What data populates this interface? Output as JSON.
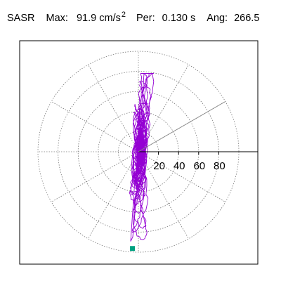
{
  "header": {
    "station": "SASR",
    "max_label": "Max:",
    "max_value": "91.9 cm/s",
    "max_exp": "2",
    "per_label": "Per:",
    "per_value": "0.130 s",
    "ang_label": "Ang:",
    "ang_value": "266.5"
  },
  "chart_data": {
    "type": "scatter",
    "description_free": true,
    "coordinate_system": "polar",
    "radial_ticks": [
      20,
      40,
      60,
      80
    ],
    "radial_range": [
      0,
      100
    ],
    "rings": [
      20,
      40,
      60,
      80,
      100
    ],
    "spoke_angles_deg": [
      0,
      30,
      60,
      90,
      120,
      150,
      180,
      210,
      240,
      270,
      300,
      330
    ],
    "grid": true,
    "azimuth_marker_deg": 30,
    "max_point": {
      "azimuth_deg": 266.5,
      "amplitude": 91.9
    },
    "colors": {
      "trace": "#9400D3",
      "max_marker": "#00A080",
      "grid": "#777777",
      "axis": "#000000"
    },
    "trace": {
      "scale_x": 3.4,
      "scale_y": 14.5,
      "peak_north": 78,
      "peak_south": 89,
      "samples": 2600
    }
  }
}
